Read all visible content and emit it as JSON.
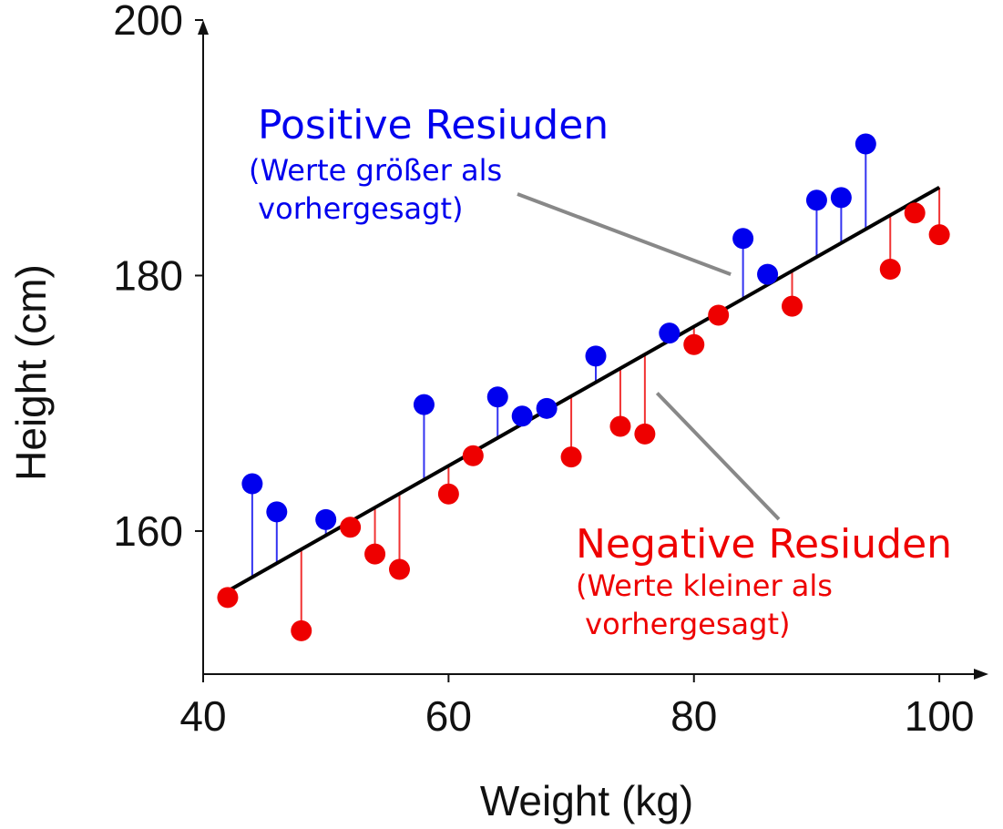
{
  "chart_data": {
    "type": "scatter",
    "title": "",
    "xlabel": "Weight (kg)",
    "ylabel": "Height (cm)",
    "xlim": [
      40,
      104
    ],
    "ylim": [
      148.8,
      200
    ],
    "x_ticks": [
      40,
      60,
      80,
      100
    ],
    "y_ticks": [
      160,
      180,
      200
    ],
    "x_tick_labels": [
      "40",
      "60",
      "80",
      "100"
    ],
    "y_tick_labels": [
      "160",
      "180",
      "200"
    ],
    "grid": false,
    "legend": "none",
    "regression_line": {
      "x": [
        42,
        100
      ],
      "y": [
        155.3,
        186.9
      ],
      "color": "#000000"
    },
    "series": [
      {
        "color": "#0000ee",
        "x": [
          44,
          46,
          50,
          58,
          64,
          66,
          68,
          72,
          78,
          84,
          86,
          90,
          92,
          94
        ],
        "y": [
          163.7,
          161.5,
          160.9,
          169.9,
          170.5,
          169.0,
          169.6,
          173.7,
          175.5,
          182.9,
          180.1,
          185.9,
          186.1,
          190.3
        ]
      },
      {
        "color": "#ee0000",
        "x": [
          42,
          48,
          52,
          54,
          56,
          60,
          62,
          70,
          74,
          76,
          80,
          82,
          88,
          96,
          98,
          100
        ],
        "y": [
          154.8,
          152.2,
          160.3,
          158.2,
          157.0,
          162.9,
          165.9,
          165.8,
          168.2,
          167.6,
          174.6,
          176.9,
          177.6,
          180.5,
          184.9,
          183.2
        ]
      }
    ],
    "annotations": [
      {
        "title": "Positive Resiuden",
        "subtitle": [
          "(Werte größer als",
          " vorhergesagt)"
        ],
        "color": "#0000ee",
        "points_to": [
          83,
          180.1
        ]
      },
      {
        "title": "Negative Resiuden",
        "subtitle": [
          "(Werte kleiner als",
          " vorhergesagt)"
        ],
        "color": "#ee0000",
        "points_to": [
          77,
          170.8
        ]
      }
    ]
  }
}
